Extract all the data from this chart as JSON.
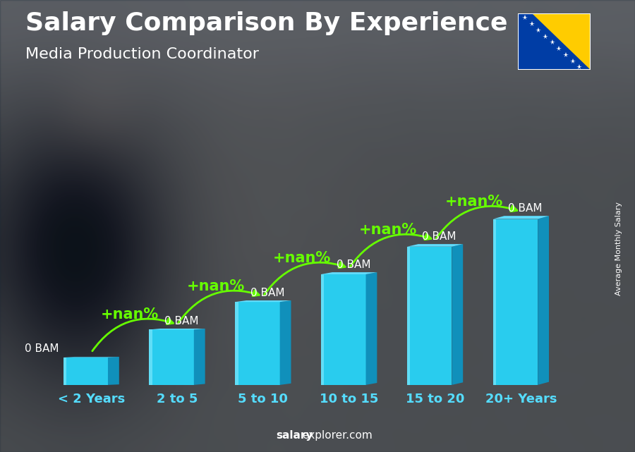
{
  "title": "Salary Comparison By Experience",
  "subtitle": "Media Production Coordinator",
  "categories": [
    "< 2 Years",
    "2 to 5",
    "5 to 10",
    "10 to 15",
    "15 to 20",
    "20+ Years"
  ],
  "bar_heights": [
    1,
    2,
    3,
    4,
    5,
    6
  ],
  "bar_color_front": "#29CCEE",
  "bar_color_side": "#1090BB",
  "bar_color_top": "#60DDFF",
  "bar_color_highlight": "#90EEFF",
  "value_labels": [
    "0 BAM",
    "0 BAM",
    "0 BAM",
    "0 BAM",
    "0 BAM",
    "0 BAM"
  ],
  "increase_labels": [
    "+nan%",
    "+nan%",
    "+nan%",
    "+nan%",
    "+nan%"
  ],
  "title_color": "#FFFFFF",
  "subtitle_color": "#FFFFFF",
  "label_color": "#FFFFFF",
  "value_color": "#FFFFFF",
  "increase_color": "#66FF00",
  "arrow_color": "#66FF00",
  "ylabel": "Average Monthly Salary",
  "footer_bold": "salary",
  "footer_normal": "explorer.com",
  "bg_color": "#3a4a5a",
  "title_fontsize": 26,
  "subtitle_fontsize": 16,
  "cat_fontsize": 13,
  "value_fontsize": 11,
  "increase_fontsize": 15,
  "ylabel_fontsize": 8,
  "footer_fontsize": 11,
  "flag_blue": "#003DA5",
  "flag_yellow": "#FFCC00"
}
